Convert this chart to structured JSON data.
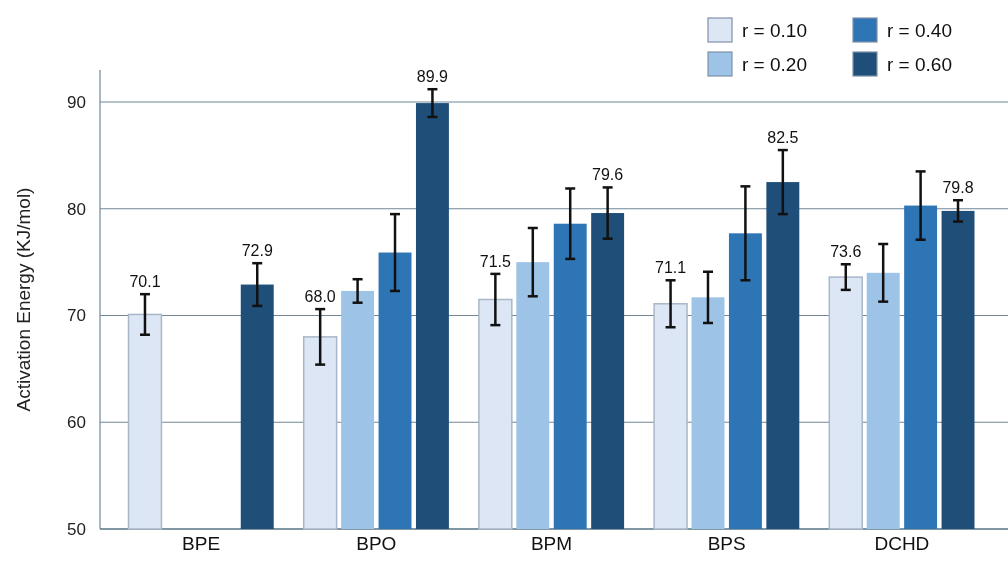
{
  "chart_data": {
    "type": "bar",
    "ylabel": "Activation Energy (KJ/mol)",
    "categories": [
      "BPE",
      "BPO",
      "BPM",
      "BPS",
      "DCHD"
    ],
    "series": [
      {
        "name": "r = 0.10",
        "color": "#dce6f5",
        "values": [
          70.1,
          68.0,
          71.5,
          71.1,
          73.6
        ],
        "errors": [
          1.9,
          2.6,
          2.4,
          2.2,
          1.2
        ],
        "value_labels": [
          "70.1",
          "68.0",
          "71.5",
          "71.1",
          "73.6"
        ]
      },
      {
        "name": "r = 0.20",
        "color": "#9dc3e6",
        "values": [
          null,
          72.3,
          75.0,
          71.7,
          74.0
        ],
        "errors": [
          null,
          1.1,
          3.2,
          2.4,
          2.7
        ],
        "value_labels": [
          null,
          null,
          null,
          null,
          null
        ]
      },
      {
        "name": "r = 0.40",
        "color": "#2e75b6",
        "values": [
          null,
          75.9,
          78.6,
          77.7,
          80.3
        ],
        "errors": [
          null,
          3.6,
          3.3,
          4.4,
          3.2
        ],
        "value_labels": [
          null,
          null,
          null,
          null,
          null
        ]
      },
      {
        "name": "r = 0.60",
        "color": "#1f4e79",
        "values": [
          72.9,
          89.9,
          79.6,
          82.5,
          79.8
        ],
        "errors": [
          2.0,
          1.3,
          2.4,
          3.0,
          1.0
        ],
        "value_labels": [
          "72.9",
          "89.9",
          "79.6",
          "82.5",
          "79.8"
        ]
      }
    ],
    "ylim": [
      50,
      93
    ],
    "yticks": [
      50,
      60,
      70,
      80,
      90
    ],
    "grid": "y",
    "legend": "top right"
  }
}
